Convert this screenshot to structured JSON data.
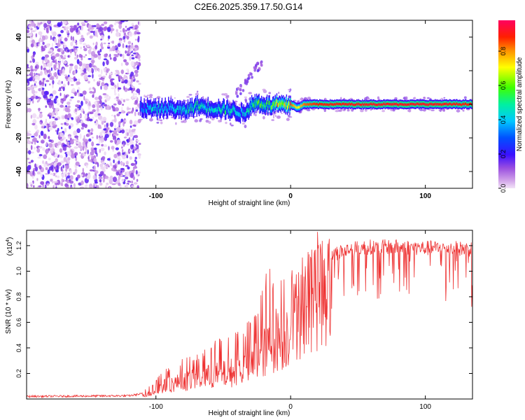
{
  "title": "C2E6.2025.359.17.50.G14",
  "chart_data": [
    {
      "type": "heatmap",
      "name": "spectrogram",
      "xlabel": "Height of straight line (km)",
      "ylabel": "Frequency (Hz)",
      "xlim": [
        -196,
        135
      ],
      "ylim": [
        -50,
        50
      ],
      "xticks": [
        -100,
        0,
        100
      ],
      "xtick_labels": [
        "-100",
        "0",
        "100"
      ],
      "yticks": [
        -40,
        -20,
        0,
        20,
        40
      ],
      "ytick_labels": [
        "-40",
        "-20",
        "0",
        "20",
        "40"
      ],
      "noise_region_x": [
        -196,
        -112
      ],
      "signal_line": {
        "x": [
          -112,
          -100,
          -90,
          -80,
          -70,
          -60,
          -50,
          -40,
          -35,
          -30,
          -25,
          -20,
          -15,
          -10,
          -5,
          0,
          5,
          10,
          20,
          40,
          60,
          80,
          100,
          120,
          135
        ],
        "freq": [
          -2,
          -3,
          -2,
          -4,
          -1,
          -2,
          -3,
          -4,
          -6,
          -1,
          1,
          0,
          -1,
          0,
          -1,
          0,
          -2,
          0,
          0,
          0,
          0,
          0,
          0,
          0,
          0
        ],
        "amplitude": [
          0.35,
          0.45,
          0.4,
          0.45,
          0.5,
          0.45,
          0.5,
          0.45,
          0.4,
          0.55,
          0.6,
          0.55,
          0.6,
          0.8,
          0.7,
          0.85,
          0.7,
          0.85,
          0.9,
          0.92,
          0.93,
          0.93,
          0.93,
          0.92,
          0.9
        ]
      },
      "colorbar": {
        "label": "Normalized spectral amplitude",
        "ticks": [
          0.0,
          0.2,
          0.4,
          0.6,
          0.8
        ],
        "tick_labels": [
          "0.0",
          "0.2",
          "0.4",
          "0.6",
          "0.8"
        ],
        "range": [
          0,
          0.98
        ]
      }
    },
    {
      "type": "line",
      "name": "snr",
      "xlabel": "Height of straight line (km)",
      "ylabel": "SNR (10 * v/v)",
      "scale_label": "(x10",
      "scale_exp": "4",
      "scale_close": ")",
      "xlim": [
        -196,
        135
      ],
      "ylim": [
        0,
        1.32
      ],
      "xticks": [
        -100,
        0,
        100
      ],
      "xtick_labels": [
        "-100",
        "0",
        "100"
      ],
      "yticks": [
        0.2,
        0.4,
        0.6,
        0.8,
        1.0,
        1.2
      ],
      "ytick_labels": [
        "0.2",
        "0.4",
        "0.6",
        "0.8",
        "1.0",
        "1.2"
      ],
      "color": "#ee3333",
      "envelope": {
        "x": [
          -196,
          -120,
          -105,
          -100,
          -95,
          -90,
          -80,
          -70,
          -60,
          -50,
          -40,
          -30,
          -25,
          -20,
          -15,
          -10,
          -5,
          0,
          5,
          10,
          15,
          20,
          25,
          30,
          40,
          50,
          60,
          80,
          100,
          120,
          135
        ],
        "mean": [
          0.02,
          0.025,
          0.05,
          0.08,
          0.12,
          0.14,
          0.17,
          0.19,
          0.22,
          0.24,
          0.27,
          0.32,
          0.38,
          0.45,
          0.52,
          0.6,
          0.62,
          0.7,
          0.8,
          0.9,
          0.98,
          1.05,
          1.1,
          1.13,
          1.16,
          1.18,
          1.19,
          1.19,
          1.18,
          1.18,
          1.17
        ],
        "max": [
          0.03,
          0.035,
          0.1,
          0.15,
          0.25,
          0.26,
          0.34,
          0.35,
          0.45,
          0.5,
          0.54,
          0.62,
          0.75,
          0.95,
          1.05,
          1.0,
          0.95,
          1.08,
          1.1,
          1.12,
          1.18,
          1.22,
          1.25,
          1.26,
          1.27,
          1.27,
          1.28,
          1.27,
          1.27,
          1.26,
          1.25
        ]
      }
    }
  ]
}
